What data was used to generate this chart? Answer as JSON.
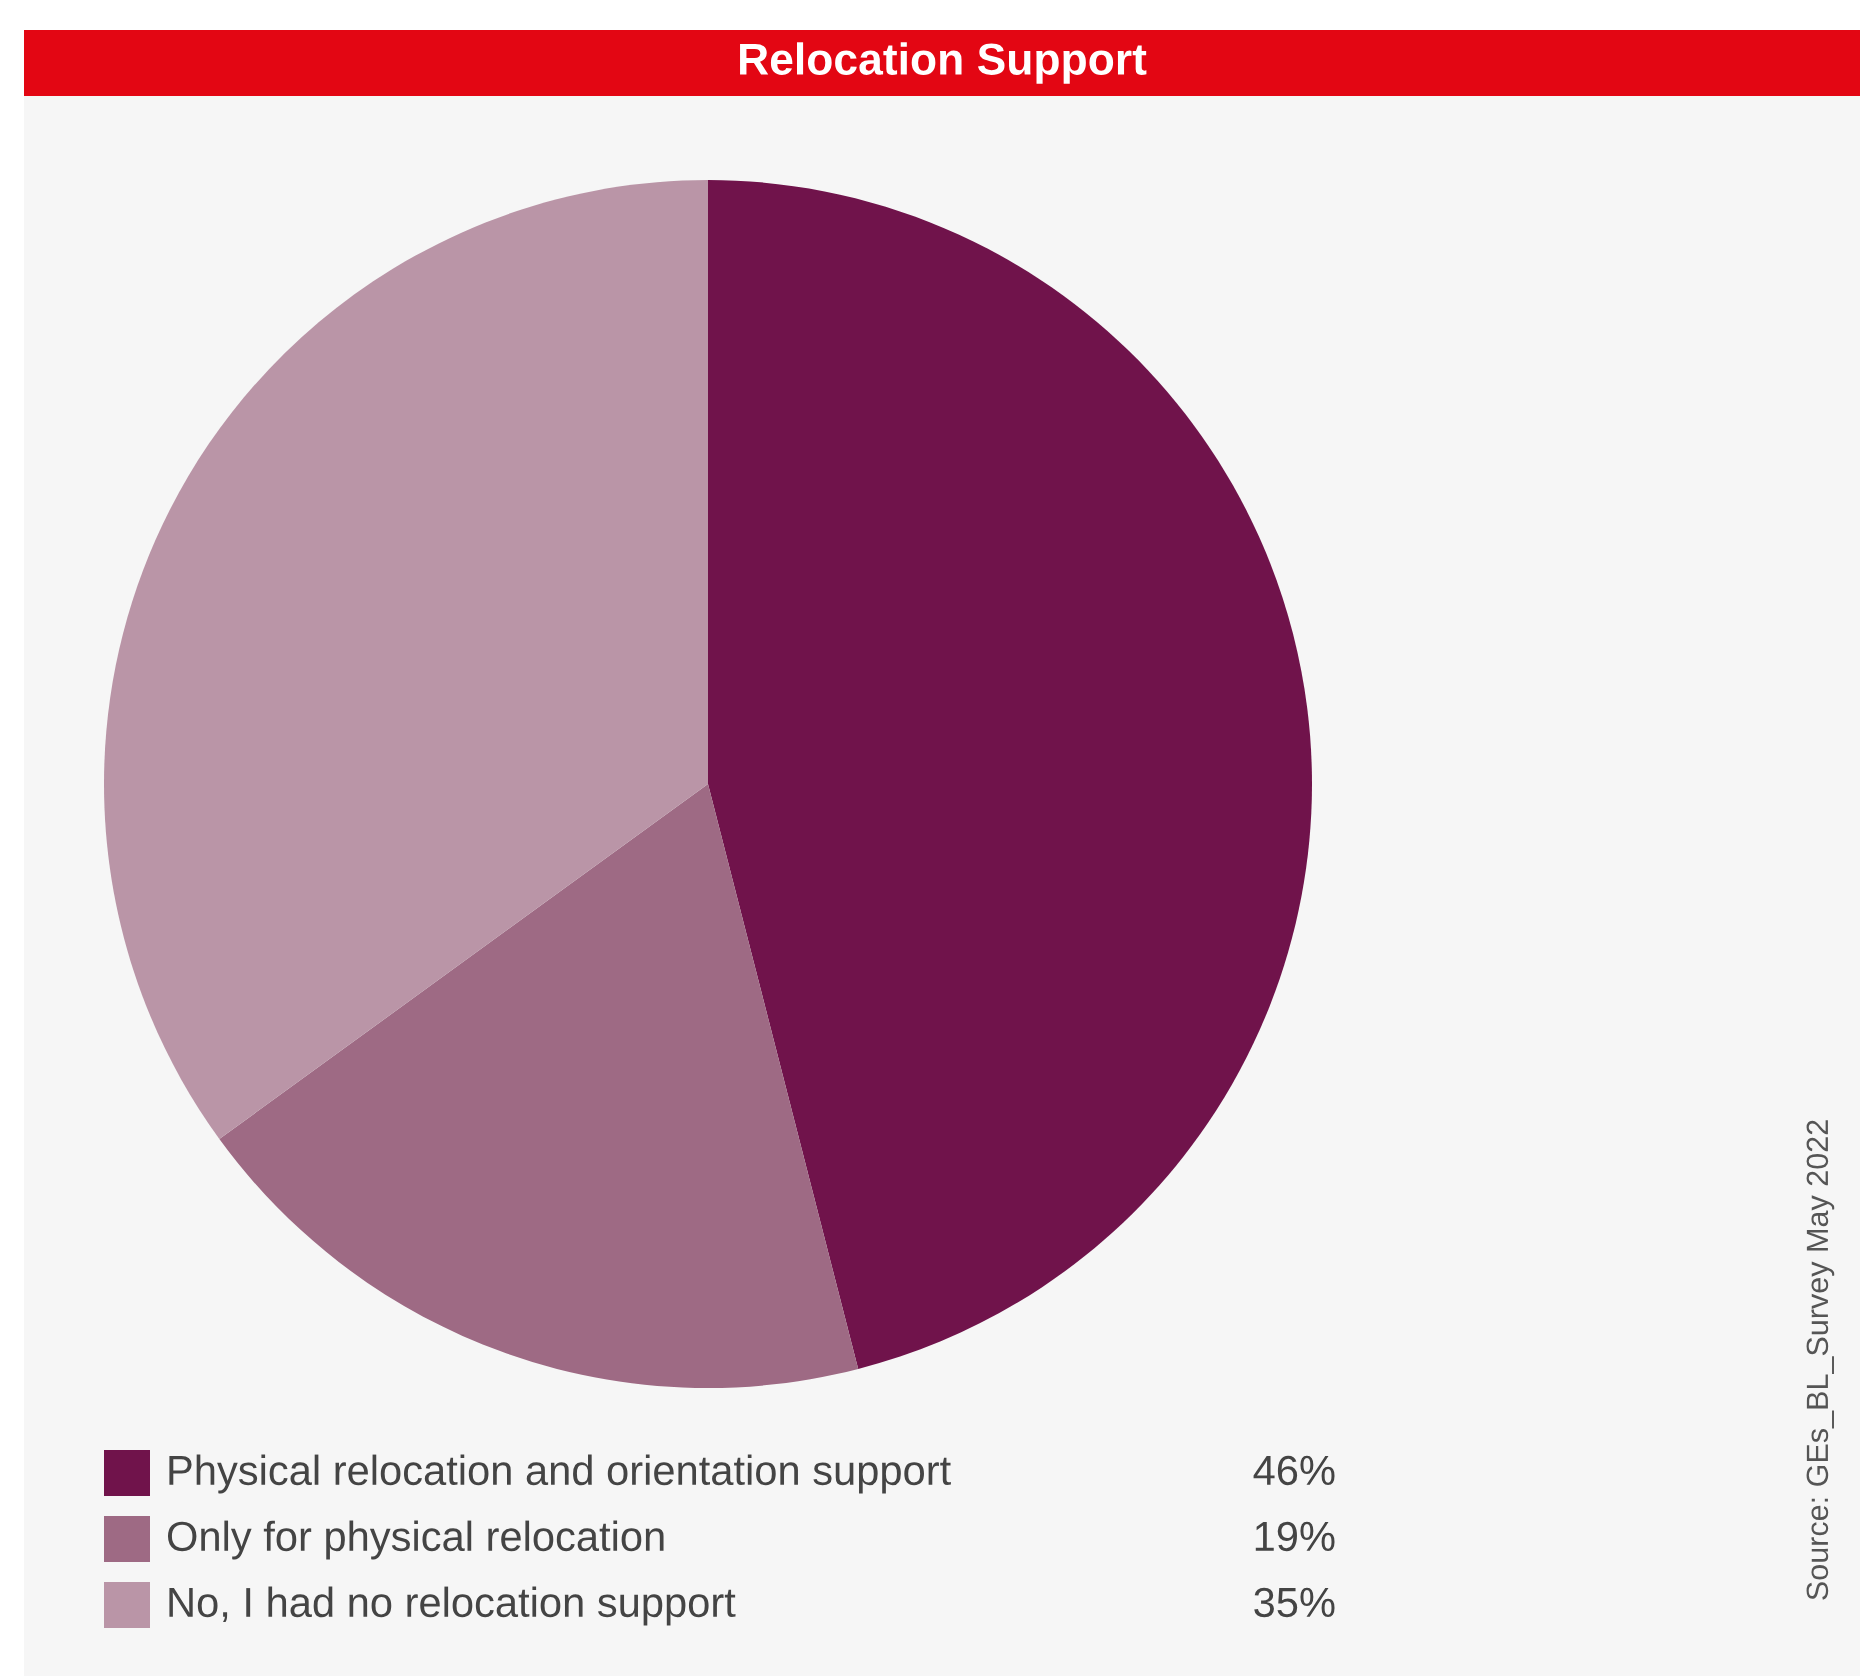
{
  "chart_data": {
    "type": "pie",
    "title": "Relocation Support",
    "categories": [
      "Physical relocation and orientation support",
      "Only for physical relocation",
      "No, I had no relocation support"
    ],
    "values": [
      46,
      19,
      35
    ],
    "value_labels": [
      "46%",
      "19%",
      "35%"
    ],
    "colors": [
      "#70134b",
      "#9e6a84",
      "#ba95a7"
    ],
    "legend": "bottom left",
    "annotations": [
      "Source: GEs_BL_Survey May 2022"
    ]
  }
}
